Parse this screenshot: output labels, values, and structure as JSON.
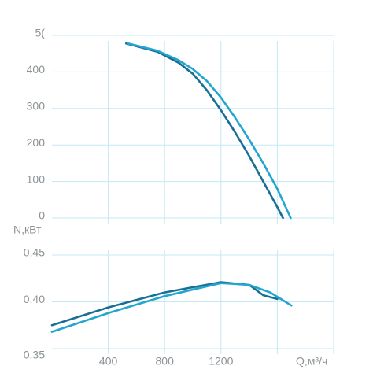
{
  "chart_data": [
    {
      "type": "line",
      "xlim": [
        0,
        2000
      ],
      "ylim": [
        0,
        500
      ],
      "xgrid": [
        400,
        800,
        1200,
        1600,
        2000
      ],
      "yticks": [
        0,
        100,
        200,
        300,
        400,
        {
          "value": 500,
          "label": "5("
        }
      ],
      "grid": true,
      "series": [
        {
          "color": "#1a6e96",
          "x": [
            526,
            750,
            900,
            1000,
            1100,
            1200,
            1300,
            1400,
            1500,
            1600,
            1640
          ],
          "values": [
            478,
            455,
            425,
            395,
            350,
            295,
            235,
            170,
            100,
            30,
            0
          ]
        },
        {
          "color": "#22a5cf",
          "x": [
            540,
            750,
            900,
            1000,
            1100,
            1200,
            1300,
            1400,
            1500,
            1600,
            1695
          ],
          "values": [
            478,
            458,
            432,
            408,
            375,
            330,
            275,
            215,
            150,
            80,
            0
          ]
        }
      ]
    },
    {
      "type": "line",
      "y_label": "N,кВт",
      "x_label": "Q,м³/ч",
      "xlim": [
        0,
        2000
      ],
      "ylim": [
        0.35,
        0.455
      ],
      "xgrid": [
        400,
        800,
        1200,
        1600,
        2000
      ],
      "xticks": [
        400,
        800,
        1200
      ],
      "yticks": [
        {
          "value": 0.35,
          "label": "0,35"
        },
        {
          "value": 0.4,
          "label": "0,40"
        },
        {
          "value": 0.45,
          "label": "0,45"
        }
      ],
      "grid": true,
      "series": [
        {
          "color": "#1a6e96",
          "x": [
            0,
            400,
            800,
            1200,
            1400,
            1500,
            1600
          ],
          "values": [
            0.375,
            0.394,
            0.41,
            0.421,
            0.418,
            0.407,
            0.403
          ]
        },
        {
          "color": "#22a5cf",
          "x": [
            0,
            400,
            800,
            1200,
            1400,
            1550,
            1700
          ],
          "values": [
            0.368,
            0.388,
            0.406,
            0.42,
            0.418,
            0.41,
            0.396
          ]
        }
      ]
    }
  ]
}
